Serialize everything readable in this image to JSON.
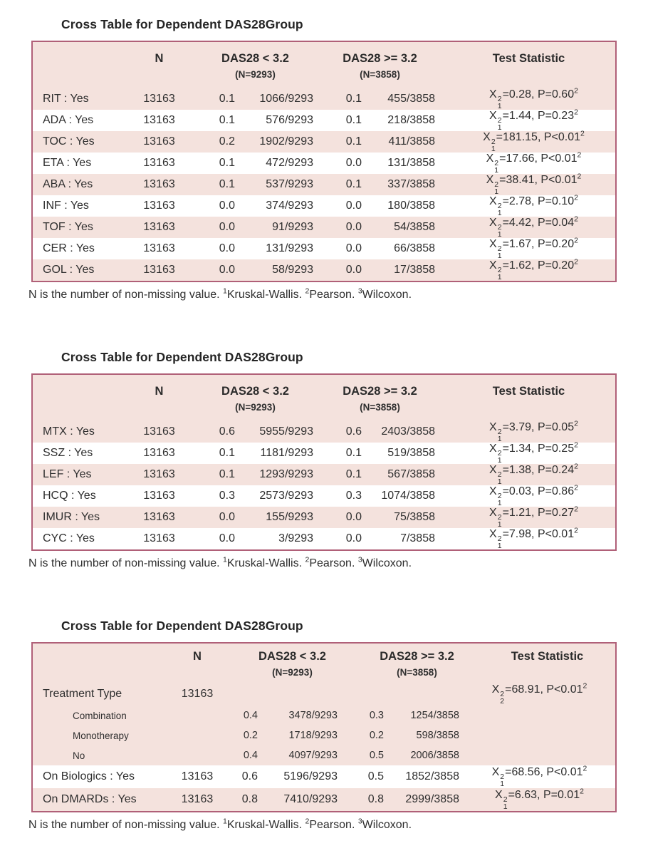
{
  "colors": {
    "row_pink": "#f4e2dd",
    "table_border": "#b06078",
    "text": "#2f2f2f",
    "background": "#ffffff"
  },
  "columns": {
    "n": "N",
    "das_lt": "DAS28 < 3.2",
    "das_lt_sub": "(N=9293)",
    "das_ge": "DAS28 >= 3.2",
    "das_ge_sub": "(N=3858)",
    "test": "Test Statistic"
  },
  "footnote": {
    "text": "N is the number of non-missing value.",
    "refs": [
      {
        "marker": "1",
        "label": "Kruskal-Wallis."
      },
      {
        "marker": "2",
        "label": "Pearson."
      },
      {
        "marker": "3",
        "label": "Wilcoxon."
      }
    ]
  },
  "tables": [
    {
      "title": "Cross Table for Dependent DAS28Group",
      "rows": [
        {
          "label": "RIT : Yes",
          "indent": false,
          "n": "13163",
          "das_lt": {
            "prop": "0.1",
            "frac": "1066/9293"
          },
          "das_ge": {
            "prop": "0.1",
            "frac": "455/3858"
          },
          "test": {
            "x_exp": "2",
            "x_df": "1",
            "value": "0.28",
            "p": "P=0.60",
            "ref": "2"
          }
        },
        {
          "label": "ADA : Yes",
          "indent": false,
          "n": "13163",
          "das_lt": {
            "prop": "0.1",
            "frac": "576/9293"
          },
          "das_ge": {
            "prop": "0.1",
            "frac": "218/3858"
          },
          "test": {
            "x_exp": "2",
            "x_df": "1",
            "value": "1.44",
            "p": "P=0.23",
            "ref": "2"
          }
        },
        {
          "label": "TOC : Yes",
          "indent": false,
          "n": "13163",
          "das_lt": {
            "prop": "0.2",
            "frac": "1902/9293"
          },
          "das_ge": {
            "prop": "0.1",
            "frac": "411/3858"
          },
          "test": {
            "x_exp": "2",
            "x_df": "1",
            "value": "181.15",
            "p": "P<0.01",
            "ref": "2"
          }
        },
        {
          "label": "ETA : Yes",
          "indent": false,
          "n": "13163",
          "das_lt": {
            "prop": "0.1",
            "frac": "472/9293"
          },
          "das_ge": {
            "prop": "0.0",
            "frac": "131/3858"
          },
          "test": {
            "x_exp": "2",
            "x_df": "1",
            "value": "17.66",
            "p": "P<0.01",
            "ref": "2"
          }
        },
        {
          "label": "ABA : Yes",
          "indent": false,
          "n": "13163",
          "das_lt": {
            "prop": "0.1",
            "frac": "537/9293"
          },
          "das_ge": {
            "prop": "0.1",
            "frac": "337/3858"
          },
          "test": {
            "x_exp": "2",
            "x_df": "1",
            "value": "38.41",
            "p": "P<0.01",
            "ref": "2"
          }
        },
        {
          "label": "INF : Yes",
          "indent": false,
          "n": "13163",
          "das_lt": {
            "prop": "0.0",
            "frac": "374/9293"
          },
          "das_ge": {
            "prop": "0.0",
            "frac": "180/3858"
          },
          "test": {
            "x_exp": "2",
            "x_df": "1",
            "value": "2.78",
            "p": "P=0.10",
            "ref": "2"
          }
        },
        {
          "label": "TOF : Yes",
          "indent": false,
          "n": "13163",
          "das_lt": {
            "prop": "0.0",
            "frac": "91/9293"
          },
          "das_ge": {
            "prop": "0.0",
            "frac": "54/3858"
          },
          "test": {
            "x_exp": "2",
            "x_df": "1",
            "value": "4.42",
            "p": "P=0.04",
            "ref": "2"
          }
        },
        {
          "label": "CER : Yes",
          "indent": false,
          "n": "13163",
          "das_lt": {
            "prop": "0.0",
            "frac": "131/9293"
          },
          "das_ge": {
            "prop": "0.0",
            "frac": "66/3858"
          },
          "test": {
            "x_exp": "2",
            "x_df": "1",
            "value": "1.67",
            "p": "P=0.20",
            "ref": "2"
          }
        },
        {
          "label": "GOL : Yes",
          "indent": false,
          "n": "13163",
          "das_lt": {
            "prop": "0.0",
            "frac": "58/9293"
          },
          "das_ge": {
            "prop": "0.0",
            "frac": "17/3858"
          },
          "test": {
            "x_exp": "2",
            "x_df": "1",
            "value": "1.62",
            "p": "P=0.20",
            "ref": "2"
          }
        }
      ]
    },
    {
      "title": "Cross Table for Dependent DAS28Group",
      "rows": [
        {
          "label": "MTX : Yes",
          "indent": false,
          "n": "13163",
          "das_lt": {
            "prop": "0.6",
            "frac": "5955/9293"
          },
          "das_ge": {
            "prop": "0.6",
            "frac": "2403/3858"
          },
          "test": {
            "x_exp": "2",
            "x_df": "1",
            "value": "3.79",
            "p": "P=0.05",
            "ref": "2"
          }
        },
        {
          "label": "SSZ : Yes",
          "indent": false,
          "n": "13163",
          "das_lt": {
            "prop": "0.1",
            "frac": "1181/9293"
          },
          "das_ge": {
            "prop": "0.1",
            "frac": "519/3858"
          },
          "test": {
            "x_exp": "2",
            "x_df": "1",
            "value": "1.34",
            "p": "P=0.25",
            "ref": "2"
          }
        },
        {
          "label": "LEF : Yes",
          "indent": false,
          "n": "13163",
          "das_lt": {
            "prop": "0.1",
            "frac": "1293/9293"
          },
          "das_ge": {
            "prop": "0.1",
            "frac": "567/3858"
          },
          "test": {
            "x_exp": "2",
            "x_df": "1",
            "value": "1.38",
            "p": "P=0.24",
            "ref": "2"
          }
        },
        {
          "label": "HCQ : Yes",
          "indent": false,
          "n": "13163",
          "das_lt": {
            "prop": "0.3",
            "frac": "2573/9293"
          },
          "das_ge": {
            "prop": "0.3",
            "frac": "1074/3858"
          },
          "test": {
            "x_exp": "2",
            "x_df": "1",
            "value": "0.03",
            "p": "P=0.86",
            "ref": "2"
          }
        },
        {
          "label": "IMUR : Yes",
          "indent": false,
          "n": "13163",
          "das_lt": {
            "prop": "0.0",
            "frac": "155/9293"
          },
          "das_ge": {
            "prop": "0.0",
            "frac": "75/3858"
          },
          "test": {
            "x_exp": "2",
            "x_df": "1",
            "value": "1.21",
            "p": "P=0.27",
            "ref": "2"
          }
        },
        {
          "label": "CYC : Yes",
          "indent": false,
          "n": "13163",
          "das_lt": {
            "prop": "0.0",
            "frac": "3/9293"
          },
          "das_ge": {
            "prop": "0.0",
            "frac": "7/3858"
          },
          "test": {
            "x_exp": "2",
            "x_df": "1",
            "value": "7.98",
            "p": "P<0.01",
            "ref": "2"
          }
        }
      ]
    },
    {
      "title": "Cross Table for Dependent DAS28Group",
      "rows": [
        {
          "label": "Treatment Type",
          "indent": false,
          "n": "13163",
          "das_lt": null,
          "das_ge": null,
          "test": {
            "x_exp": "2",
            "x_df": "2",
            "value": "68.91",
            "p": "P<0.01",
            "ref": "2"
          }
        },
        {
          "label": "Combination",
          "indent": true,
          "n": null,
          "das_lt": {
            "prop": "0.4",
            "frac": "3478/9293"
          },
          "das_ge": {
            "prop": "0.3",
            "frac": "1254/3858"
          },
          "test": null
        },
        {
          "label": "Monotherapy",
          "indent": true,
          "n": null,
          "das_lt": {
            "prop": "0.2",
            "frac": "1718/9293"
          },
          "das_ge": {
            "prop": "0.2",
            "frac": "598/3858"
          },
          "test": null
        },
        {
          "label": "No",
          "indent": true,
          "n": null,
          "das_lt": {
            "prop": "0.4",
            "frac": "4097/9293"
          },
          "das_ge": {
            "prop": "0.5",
            "frac": "2006/3858"
          },
          "test": null
        },
        {
          "label": "On Biologics : Yes",
          "indent": false,
          "n": "13163",
          "das_lt": {
            "prop": "0.6",
            "frac": "5196/9293"
          },
          "das_ge": {
            "prop": "0.5",
            "frac": "1852/3858"
          },
          "test": {
            "x_exp": "2",
            "x_df": "1",
            "value": "68.56",
            "p": "P<0.01",
            "ref": "2"
          }
        },
        {
          "label": "On DMARDs : Yes",
          "indent": false,
          "n": "13163",
          "das_lt": {
            "prop": "0.8",
            "frac": "7410/9293"
          },
          "das_ge": {
            "prop": "0.8",
            "frac": "2999/3858"
          },
          "test": {
            "x_exp": "2",
            "x_df": "1",
            "value": "6.63",
            "p": "P=0.01",
            "ref": "2"
          }
        }
      ]
    }
  ]
}
